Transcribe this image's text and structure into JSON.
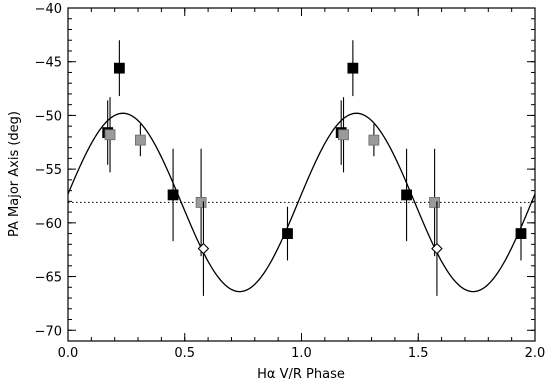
{
  "chart_data": {
    "type": "scatter",
    "title": "",
    "xlabel": "Hα V/R Phase",
    "ylabel": "PA Major Axis (deg)",
    "xlim": [
      0.0,
      2.0
    ],
    "ylim": [
      -71,
      -40
    ],
    "x_ticks": [
      0.0,
      0.5,
      1.0,
      1.5,
      2.0
    ],
    "x_tick_labels": [
      "0.0",
      "0.5",
      "1.0",
      "1.5",
      "2.0"
    ],
    "y_ticks": [
      -70,
      -65,
      -60,
      -55,
      -50,
      -45,
      -40
    ],
    "y_tick_labels": [
      "−70",
      "−65",
      "−60",
      "−55",
      "−50",
      "−45",
      "−40"
    ],
    "grid": false,
    "legend": "none",
    "reference_line": {
      "y": -58.1,
      "style": "dotted"
    },
    "model_curve": {
      "kind": "sinusoid",
      "mean": -58.1,
      "amplitude": 8.3,
      "phase_of_max": 0.235,
      "period": 1.0
    },
    "series": [
      {
        "marker": "square-filled",
        "color": "#000000",
        "points": [
          {
            "x": 0.17,
            "y": -51.6,
            "yerr": 3.0
          },
          {
            "x": 0.22,
            "y": -45.6,
            "yerr": 2.6
          },
          {
            "x": 0.45,
            "y": -57.4,
            "yerr": 4.3
          },
          {
            "x": 0.94,
            "y": -61.0,
            "yerr": 2.5
          },
          {
            "x": 1.17,
            "y": -51.6,
            "yerr": 3.0
          },
          {
            "x": 1.22,
            "y": -45.6,
            "yerr": 2.6
          },
          {
            "x": 1.45,
            "y": -57.4,
            "yerr": 4.3
          },
          {
            "x": 1.94,
            "y": -61.0,
            "yerr": 2.5
          }
        ]
      },
      {
        "marker": "square-filled",
        "color": "#9a9a9a",
        "points": [
          {
            "x": 0.18,
            "y": -51.8,
            "yerr": 3.5
          },
          {
            "x": 0.31,
            "y": -52.3,
            "yerr": 1.5
          },
          {
            "x": 0.57,
            "y": -58.1,
            "yerr": 5.0
          },
          {
            "x": 1.18,
            "y": -51.8,
            "yerr": 3.5
          },
          {
            "x": 1.31,
            "y": -52.3,
            "yerr": 1.5
          },
          {
            "x": 1.57,
            "y": -58.1,
            "yerr": 5.0
          }
        ]
      },
      {
        "marker": "diamond-open",
        "color": "#000000",
        "points": [
          {
            "x": 0.58,
            "y": -62.4,
            "yerr": 4.4
          },
          {
            "x": 1.58,
            "y": -62.4,
            "yerr": 4.4
          }
        ]
      }
    ]
  }
}
